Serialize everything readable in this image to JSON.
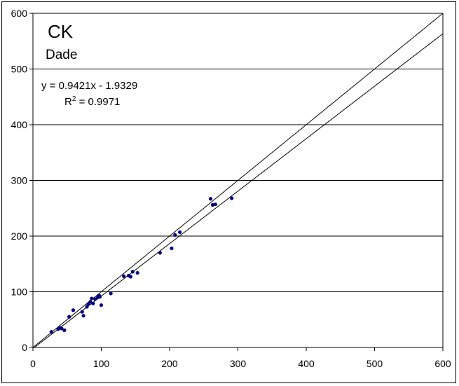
{
  "chart_data": {
    "type": "scatter",
    "title": "CK",
    "subtitle": "Dade",
    "xlabel": "",
    "ylabel": "",
    "xlim": [
      0,
      600
    ],
    "ylim": [
      0,
      600
    ],
    "xticks": [
      0,
      100,
      200,
      300,
      400,
      500,
      600
    ],
    "yticks": [
      0,
      100,
      200,
      300,
      400,
      500,
      600
    ],
    "grid": {
      "horizontal": true,
      "vertical": false
    },
    "annotations": {
      "equation": "y = 0.9421x - 1.9329",
      "r2_prefix": "R",
      "r2_sup": "2",
      "r2_suffix": " = 0.9971"
    },
    "lines": [
      {
        "kind": "identity",
        "slope": 1,
        "intercept": 0
      },
      {
        "kind": "regression",
        "slope": 0.9421,
        "intercept": -1.9329
      }
    ],
    "marker_color": "#000080",
    "points": [
      [
        27,
        28
      ],
      [
        37,
        33
      ],
      [
        40,
        35
      ],
      [
        42,
        34
      ],
      [
        46,
        31
      ],
      [
        53,
        55
      ],
      [
        59,
        67
      ],
      [
        72,
        64
      ],
      [
        74,
        57
      ],
      [
        79,
        73
      ],
      [
        81,
        78
      ],
      [
        84,
        82
      ],
      [
        86,
        88
      ],
      [
        88,
        79
      ],
      [
        91,
        87
      ],
      [
        95,
        90
      ],
      [
        97,
        93
      ],
      [
        98,
        91
      ],
      [
        100,
        76
      ],
      [
        114,
        97
      ],
      [
        133,
        128
      ],
      [
        140,
        129
      ],
      [
        143,
        127
      ],
      [
        146,
        136
      ],
      [
        153,
        134
      ],
      [
        186,
        170
      ],
      [
        203,
        178
      ],
      [
        208,
        202
      ],
      [
        215,
        207
      ],
      [
        260,
        267
      ],
      [
        263,
        256
      ],
      [
        267,
        257
      ],
      [
        291,
        268
      ]
    ]
  }
}
